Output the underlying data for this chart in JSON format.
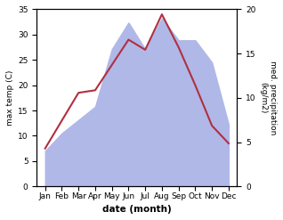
{
  "months": [
    "Jan",
    "Feb",
    "Mar",
    "Apr",
    "May",
    "Jun",
    "Jul",
    "Aug",
    "Sep",
    "Oct",
    "Nov",
    "Dec"
  ],
  "temperature": [
    7.5,
    13.0,
    18.5,
    19.0,
    24.0,
    29.0,
    27.0,
    34.0,
    27.5,
    20.0,
    12.0,
    8.5
  ],
  "precip_kg": [
    4.0,
    6.0,
    7.5,
    9.0,
    15.5,
    18.5,
    15.5,
    19.0,
    16.5,
    16.5,
    14.0,
    7.0
  ],
  "temp_color": "#b03040",
  "precip_color_fill": "#b0b8e8",
  "temp_ylim": [
    0,
    35
  ],
  "precip_ylim": [
    0,
    20
  ],
  "temp_scale": 35,
  "precip_scale": 20,
  "xlabel": "date (month)",
  "ylabel_left": "max temp (C)",
  "ylabel_right": "med. precipitation\n(kg/m2)",
  "temp_yticks": [
    0,
    5,
    10,
    15,
    20,
    25,
    30,
    35
  ],
  "precip_yticks": [
    0,
    5,
    10,
    15,
    20
  ],
  "bg_color": "#ffffff"
}
